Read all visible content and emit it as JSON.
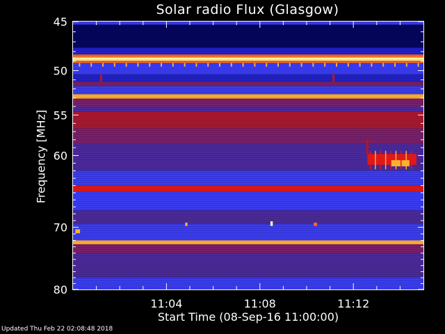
{
  "chart_data": {
    "type": "heatmap",
    "title": "Solar radio Flux (Glasgow)",
    "ylabel": "Frequency [MHz]",
    "xlabel": "Start Time (08-Sep-16 11:00:00)",
    "y_ticks": [
      {
        "value": 45,
        "label": "45"
      },
      {
        "value": 50,
        "label": "50"
      },
      {
        "value": 55,
        "label": "55"
      },
      {
        "value": 60,
        "label": "60"
      },
      {
        "value": 70,
        "label": "70"
      },
      {
        "value": 80,
        "label": "80"
      }
    ],
    "y_minor_ticks": [
      46,
      47,
      48,
      49,
      51,
      52,
      53,
      54,
      56,
      57,
      58,
      59,
      61,
      62,
      63,
      64,
      65,
      66,
      67,
      68,
      69,
      71,
      72,
      73,
      74,
      75,
      76,
      77,
      78,
      79
    ],
    "x_ticks": [
      {
        "value": 4,
        "label": "11:04"
      },
      {
        "value": 8,
        "label": "11:08"
      },
      {
        "value": 12,
        "label": "11:12"
      }
    ],
    "x_minor_ticks": [
      1,
      2,
      3,
      5,
      6,
      7,
      9,
      10,
      11,
      13,
      14
    ],
    "xlim_minutes": [
      0,
      15
    ],
    "ylim_mhz": [
      45,
      80
    ],
    "y_scale": "log",
    "colormap": [
      "#050560",
      "#2020c8",
      "#3a3cf0",
      "#4a2a9a",
      "#7a1f6a",
      "#a81830",
      "#e01818",
      "#ff6a1a",
      "#ffb030",
      "#fff6a0"
    ],
    "bands": [
      {
        "f0": 45.0,
        "f1": 45.3,
        "level": 2
      },
      {
        "f0": 45.3,
        "f1": 47.6,
        "level": 0
      },
      {
        "f0": 47.6,
        "f1": 48.3,
        "level": 1
      },
      {
        "f0": 48.3,
        "f1": 48.6,
        "level": 7
      },
      {
        "f0": 48.6,
        "f1": 48.95,
        "level": 9
      },
      {
        "f0": 48.95,
        "f1": 49.2,
        "level": 7
      },
      {
        "f0": 49.2,
        "f1": 50.4,
        "level": 2
      },
      {
        "f0": 50.4,
        "f1": 51.2,
        "level": 1
      },
      {
        "f0": 51.2,
        "f1": 51.7,
        "level": 4
      },
      {
        "f0": 51.7,
        "f1": 52.6,
        "level": 2
      },
      {
        "f0": 52.6,
        "f1": 53.1,
        "level": 8
      },
      {
        "f0": 53.1,
        "f1": 54.0,
        "level": 4
      },
      {
        "f0": 54.0,
        "f1": 54.6,
        "level": 3
      },
      {
        "f0": 54.6,
        "f1": 56.6,
        "level": 5
      },
      {
        "f0": 56.6,
        "f1": 58.5,
        "level": 4
      },
      {
        "f0": 58.5,
        "f1": 62.0,
        "level": 3
      },
      {
        "f0": 62.0,
        "f1": 64.0,
        "level": 2
      },
      {
        "f0": 64.0,
        "f1": 64.8,
        "level": 6
      },
      {
        "f0": 64.8,
        "f1": 67.5,
        "level": 2
      },
      {
        "f0": 67.5,
        "f1": 69.5,
        "level": 3
      },
      {
        "f0": 69.5,
        "f1": 72.0,
        "level": 2
      },
      {
        "f0": 72.0,
        "f1": 72.6,
        "level": 8
      },
      {
        "f0": 72.6,
        "f1": 74.0,
        "level": 4
      },
      {
        "f0": 74.0,
        "f1": 78.0,
        "level": 3
      },
      {
        "f0": 78.0,
        "f1": 80.0,
        "level": 2
      }
    ],
    "features": [
      {
        "t0": 12.6,
        "t1": 14.7,
        "f0": 59.8,
        "f1": 61.2,
        "level": 6
      },
      {
        "t0": 13.6,
        "t1": 14.4,
        "f0": 60.6,
        "f1": 61.4,
        "level": 8
      },
      {
        "t0": 12.55,
        "t1": 12.65,
        "f0": 58.0,
        "f1": 60.0,
        "level": 5
      },
      {
        "t0": 0.1,
        "t1": 0.3,
        "f0": 70.3,
        "f1": 70.9,
        "level": 8
      },
      {
        "t0": 1.15,
        "t1": 1.25,
        "f0": 50.4,
        "f1": 51.2,
        "level": 5
      },
      {
        "t0": 11.1,
        "t1": 11.2,
        "f0": 50.4,
        "f1": 51.2,
        "level": 5
      },
      {
        "t0": 4.8,
        "t1": 4.9,
        "f0": 69.3,
        "f1": 69.8,
        "level": 8
      },
      {
        "t0": 8.45,
        "t1": 8.55,
        "f0": 69.1,
        "f1": 69.8,
        "level": 9
      },
      {
        "t0": 10.3,
        "t1": 10.45,
        "f0": 69.3,
        "f1": 69.8,
        "level": 7
      }
    ]
  },
  "footer": "Updated Thu Feb 22 02:08:48 2018"
}
